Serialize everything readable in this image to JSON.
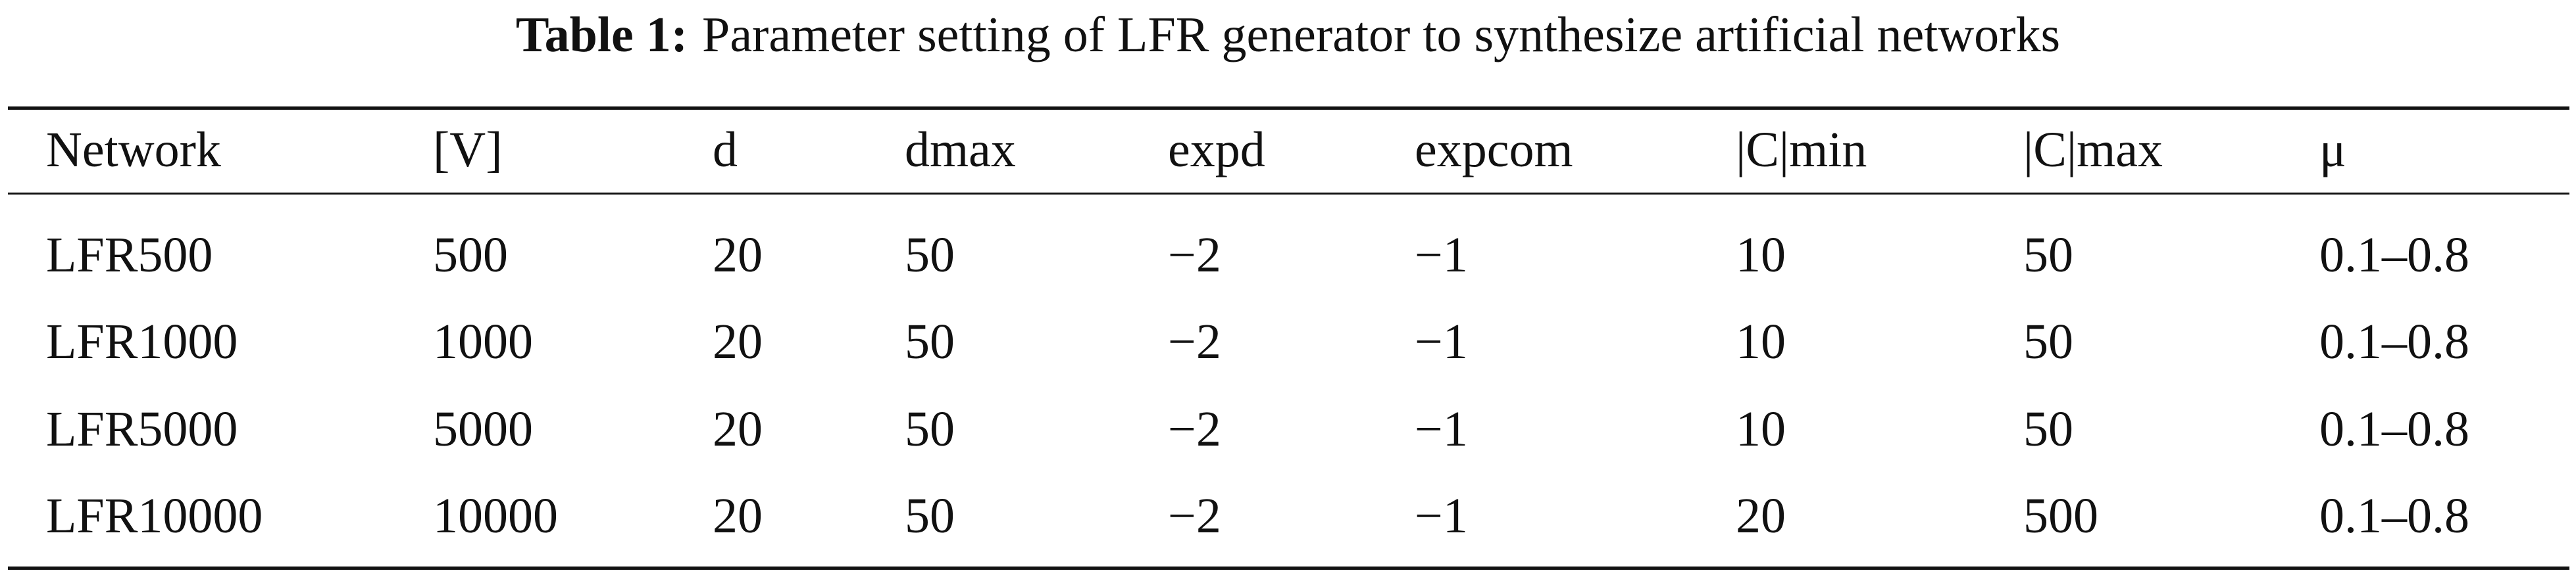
{
  "caption": {
    "label": "Table 1:",
    "text": "Parameter setting of LFR generator to synthesize artificial networks"
  },
  "table": {
    "header": [
      "Network",
      "[V]",
      "d",
      "dmax",
      "expd",
      "expcom",
      "|C|min",
      "|C|max",
      "μ"
    ],
    "rows": [
      [
        "LFR500",
        "500",
        "20",
        "50",
        "−2",
        "−1",
        "10",
        "50",
        "0.1–0.8"
      ],
      [
        "LFR1000",
        "1000",
        "20",
        "50",
        "−2",
        "−1",
        "10",
        "50",
        "0.1–0.8"
      ],
      [
        "LFR5000",
        "5000",
        "20",
        "50",
        "−2",
        "−1",
        "10",
        "50",
        "0.1–0.8"
      ],
      [
        "LFR10000",
        "10000",
        "20",
        "50",
        "−2",
        "−1",
        "20",
        "500",
        "0.1–0.8"
      ]
    ]
  }
}
